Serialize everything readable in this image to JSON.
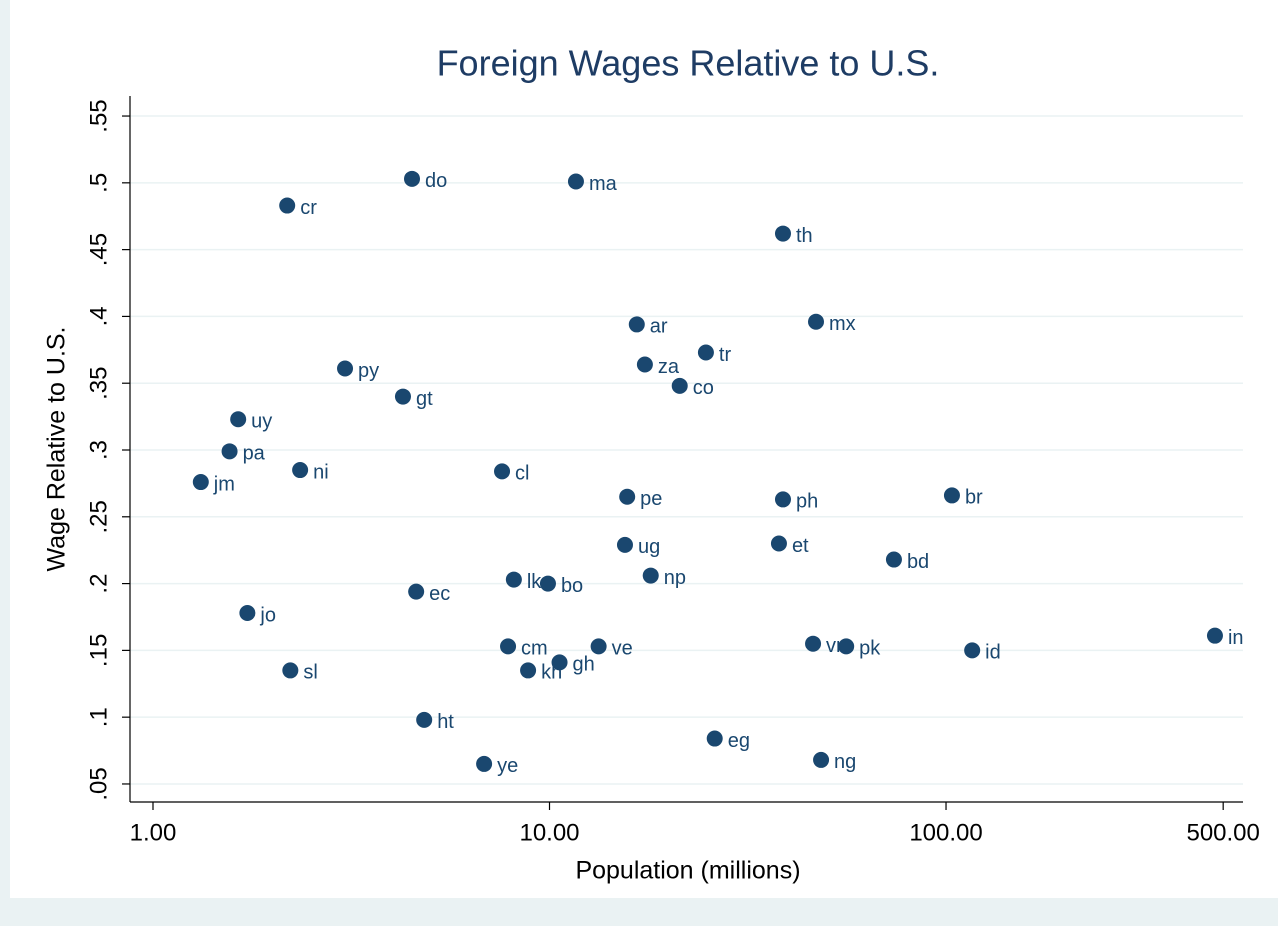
{
  "chart_data": {
    "type": "scatter",
    "title": "Foreign Wages Relative to U.S.",
    "x_label": "Population (millions)",
    "y_label": "Wage Relative to U.S.",
    "log_x": true,
    "grid": true,
    "color": "#1a476f",
    "labels": [
      "cr",
      "do",
      "ma",
      "th",
      "ar",
      "mx",
      "tr",
      "za",
      "co",
      "py",
      "gt",
      "uy",
      "pa",
      "ni",
      "jm",
      "cl",
      "pe",
      "ph",
      "br",
      "ug",
      "et",
      "bd",
      "np",
      "lk",
      "bo",
      "ec",
      "jo",
      "cm",
      "ve",
      "gh",
      "kh",
      "sl",
      "vn",
      "pk",
      "id",
      "in",
      "ht",
      "eg",
      "ng",
      "ye"
    ],
    "x": [
      2.18,
      4.5,
      11.66,
      38.8,
      16.6,
      47.0,
      24.8,
      17.4,
      21.3,
      3.05,
      4.27,
      1.64,
      1.56,
      2.35,
      1.32,
      7.59,
      15.7,
      38.8,
      103.5,
      15.5,
      37.9,
      73.9,
      18.0,
      8.13,
      9.91,
      4.61,
      1.73,
      7.86,
      13.3,
      10.6,
      8.83,
      2.22,
      46.2,
      56.0,
      116.4,
      476.7,
      4.83,
      26.1,
      48.4,
      6.84
    ],
    "values": [
      0.483,
      0.503,
      0.501,
      0.462,
      0.394,
      0.396,
      0.373,
      0.364,
      0.348,
      0.361,
      0.34,
      0.323,
      0.299,
      0.285,
      0.276,
      0.284,
      0.265,
      0.263,
      0.266,
      0.229,
      0.23,
      0.218,
      0.206,
      0.203,
      0.2,
      0.194,
      0.178,
      0.153,
      0.153,
      0.141,
      0.135,
      0.135,
      0.155,
      0.153,
      0.15,
      0.161,
      0.098,
      0.084,
      0.068,
      0.065
    ],
    "xlim": [
      0.875,
      561
    ],
    "ylim": [
      0.0365,
      0.565
    ],
    "xticks": [
      {
        "value": 1,
        "label": "1.00"
      },
      {
        "value": 10,
        "label": "10.00"
      },
      {
        "value": 100,
        "label": "100.00"
      },
      {
        "value": 500,
        "label": "500.00"
      }
    ],
    "yticks": [
      {
        "value": 0.05,
        "label": ".05"
      },
      {
        "value": 0.1,
        "label": ".1"
      },
      {
        "value": 0.15,
        "label": ".15"
      },
      {
        "value": 0.2,
        "label": ".2"
      },
      {
        "value": 0.25,
        "label": ".25"
      },
      {
        "value": 0.3,
        "label": ".3"
      },
      {
        "value": 0.35,
        "label": ".35"
      },
      {
        "value": 0.4,
        "label": ".4"
      },
      {
        "value": 0.45,
        "label": ".45"
      },
      {
        "value": 0.5,
        "label": ".5"
      },
      {
        "value": 0.55,
        "label": ".55"
      }
    ]
  }
}
